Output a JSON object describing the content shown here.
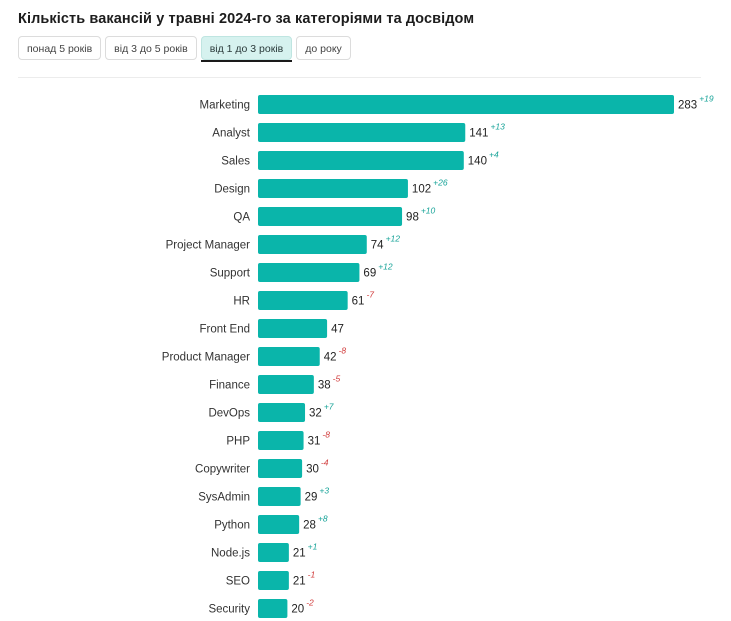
{
  "title": "Кількість вакансій у травні 2024-го за категоріями та досвідом",
  "tabs": [
    {
      "label": "понад 5 років",
      "active": false
    },
    {
      "label": "від 3 до 5 років",
      "active": false
    },
    {
      "label": "від 1 до 3 років",
      "active": true
    },
    {
      "label": "до року",
      "active": false
    }
  ],
  "colors": {
    "bar": "#0ab5aa",
    "positive": "#17a398",
    "negative": "#d03a3a",
    "active_tab": "#d6f2ef"
  },
  "chart_data": {
    "type": "bar",
    "orientation": "horizontal",
    "categories": [
      "Marketing",
      "Analyst",
      "Sales",
      "Design",
      "QA",
      "Project Manager",
      "Support",
      "HR",
      "Front End",
      "Product Manager",
      "Finance",
      "DevOps",
      "PHP",
      "Copywriter",
      "SysAdmin",
      "Python",
      "Node.js",
      "SEO",
      "Security"
    ],
    "values": [
      283,
      141,
      140,
      102,
      98,
      74,
      69,
      61,
      47,
      42,
      38,
      32,
      31,
      30,
      29,
      28,
      21,
      21,
      20
    ],
    "deltas": [
      "+19",
      "+13",
      "+4",
      "+26",
      "+10",
      "+12",
      "+12",
      "-7",
      "",
      "-8",
      "-5",
      "+7",
      "-8",
      "-4",
      "+3",
      "+8",
      "+1",
      "-1",
      "-2"
    ],
    "xlim": [
      0,
      283
    ]
  }
}
